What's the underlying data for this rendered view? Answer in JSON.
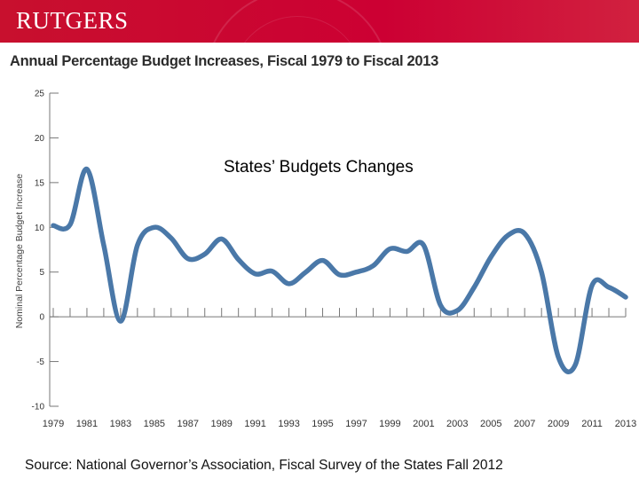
{
  "header": {
    "brand": "RUTGERS"
  },
  "slide": {
    "overlay_title": "States’ Budgets Changes",
    "source": "Source: National Governor’s Association, Fiscal Survey of the States Fall 2012"
  },
  "colors": {
    "header_red": "#cc0033",
    "line": "#4a78a8",
    "axis": "#777777"
  },
  "chart_data": {
    "type": "line",
    "title": "Annual Percentage Budget Increases, Fiscal 1979 to Fiscal 2013",
    "xlabel": "",
    "ylabel": "Nominal Percentage Budget Increase",
    "xlim": [
      1979,
      2013
    ],
    "ylim": [
      -10,
      25
    ],
    "y_ticks": [
      25,
      20,
      15,
      10,
      5,
      0,
      -5,
      -10
    ],
    "x_ticks": [
      "1979",
      "1981",
      "1983",
      "1985",
      "1987",
      "1989",
      "1991",
      "1993",
      "1995",
      "1997",
      "1999",
      "2001",
      "2003",
      "2005",
      "2007",
      "2009",
      "2011",
      "2013"
    ],
    "grid": false,
    "series": [
      {
        "x": [
          1979,
          1980,
          1981,
          1982,
          1983,
          1984,
          1985,
          1986,
          1987,
          1988,
          1989,
          1990,
          1991,
          1992,
          1993,
          1994,
          1995,
          1996,
          1997,
          1998,
          1999,
          2000,
          2001,
          2002,
          2003,
          2004,
          2005,
          2006,
          2007,
          2008,
          2009,
          2010,
          2011,
          2012,
          2013
        ],
        "y": [
          10.2,
          10.3,
          16.5,
          8.0,
          -0.5,
          8.0,
          10.0,
          8.8,
          6.5,
          7.0,
          8.7,
          6.4,
          4.8,
          5.1,
          3.7,
          5.0,
          6.3,
          4.7,
          5.0,
          5.7,
          7.6,
          7.3,
          8.0,
          1.3,
          0.7,
          3.3,
          6.7,
          9.1,
          9.3,
          5.0,
          -4.5,
          -5.4,
          3.5,
          3.3,
          2.2
        ]
      }
    ]
  }
}
